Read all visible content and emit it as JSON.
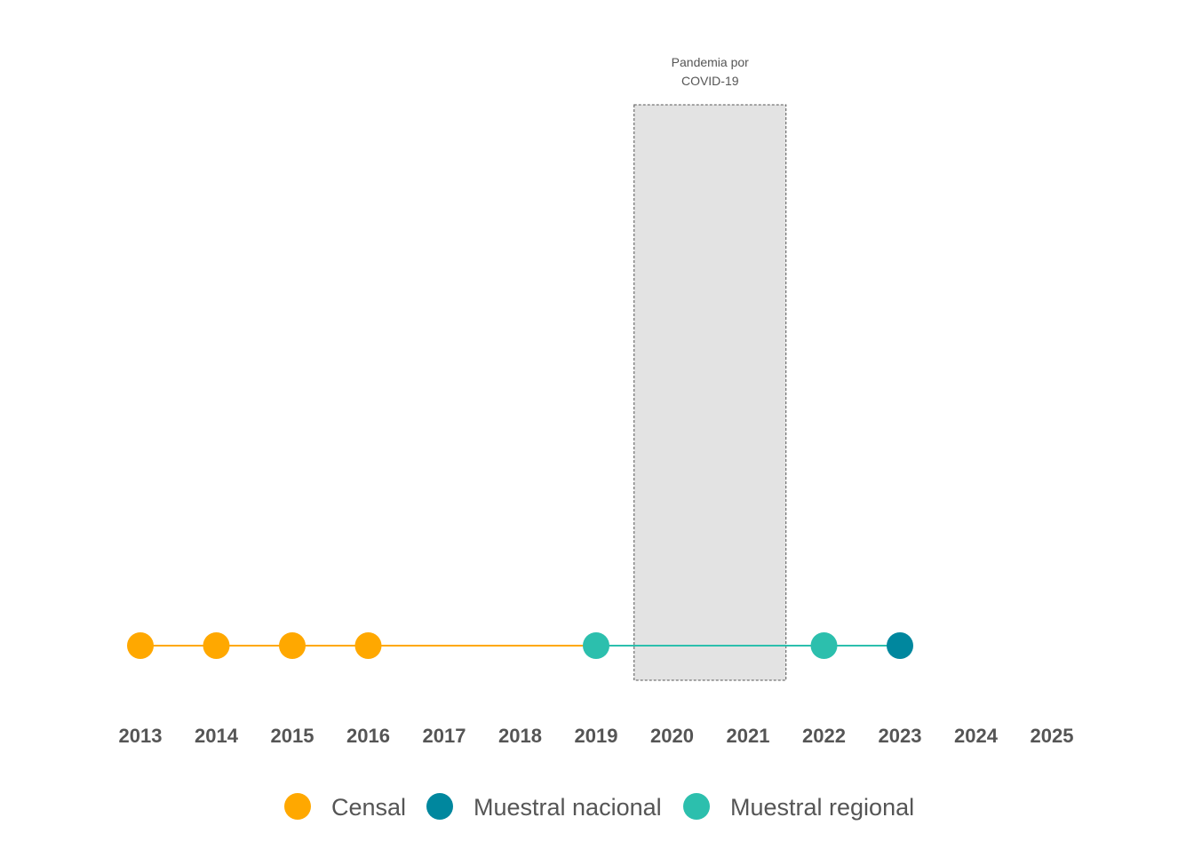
{
  "chart_data": {
    "type": "scatter",
    "title": "",
    "xlabel": "",
    "ylabel": "",
    "xlim": [
      2013,
      2025
    ],
    "x_ticks": [
      "2013",
      "2014",
      "2015",
      "2016",
      "2017",
      "2018",
      "2019",
      "2020",
      "2021",
      "2022",
      "2023",
      "2024",
      "2025"
    ],
    "grid": false,
    "legend_position": "bottom",
    "shaded_region": {
      "x_start": 2019.5,
      "x_end": 2021.5,
      "label_lines": [
        "Pandemia por",
        "COVID-19"
      ],
      "fill": "#e3e3e3",
      "border": "#555555"
    },
    "series": [
      {
        "name": "Censal",
        "color": "#FFA800",
        "x": [
          2013,
          2014,
          2015,
          2016
        ]
      },
      {
        "name": "Muestral nacional",
        "color": "#00879E",
        "x": [
          2023
        ]
      },
      {
        "name": "Muestral regional",
        "color": "#2CBFAD",
        "x": [
          2019,
          2022
        ]
      }
    ],
    "connecting_lines": [
      {
        "from": 2013,
        "to": 2019,
        "color": "#FFA800"
      },
      {
        "from": 2019,
        "to": 2023,
        "color": "#2CBFAD"
      }
    ]
  }
}
